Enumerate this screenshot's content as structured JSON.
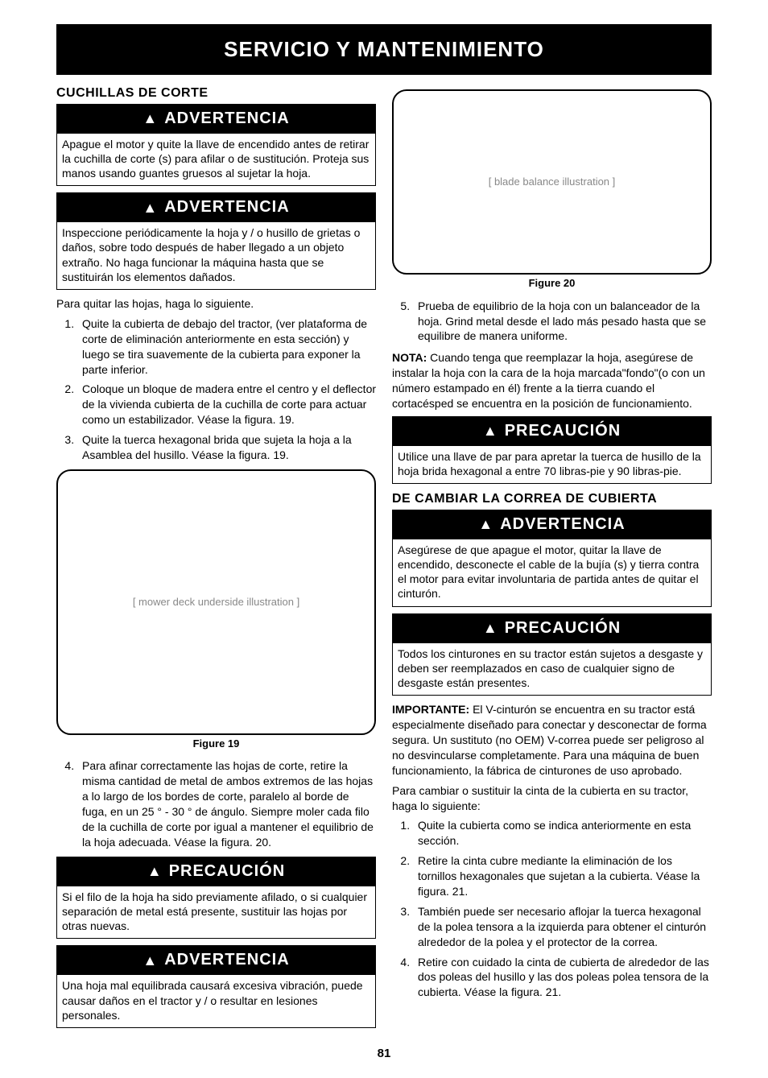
{
  "header": "SERVICIO Y MANTENIMIENTO",
  "left": {
    "section_title": "CUCHILLAS DE CORTE",
    "warn1": {
      "head": "ADVERTENCIA",
      "body": "Apague el motor y quite la llave de encendido antes de retirar la cuchilla de corte (s) para afilar o de sustitución. Proteja sus manos usando guantes gruesos al sujetar la hoja."
    },
    "warn2": {
      "head": "ADVERTENCIA",
      "body": "Inspeccione periódicamente la hoja y / o husillo de grietas o daños, sobre todo después de haber llegado a un objeto extraño. No haga funcionar la máquina hasta que se sustituirán los elementos dañados."
    },
    "intro": "Para quitar las hojas, haga lo siguiente.",
    "steps": [
      "Quite la cubierta de debajo del tractor, (ver plataforma de corte de eliminación anteriormente en esta sección) y luego se tira suavemente de la cubierta para exponer la parte inferior.",
      "Coloque un bloque de madera entre el centro y el deflector de la vivienda cubierta de la cuchilla de corte para actuar como un estabilizador. Véase la figura. 19.",
      "Quite la tuerca hexagonal brida que sujeta la hoja a la Asamblea del husillo. Véase la figura. 19."
    ],
    "fig19_caption": "Figure 19",
    "step4": "Para afinar correctamente las hojas de corte, retire la misma cantidad de metal de ambos extremos de las hojas a lo largo de los bordes de corte, paralelo al borde de fuga, en un 25 ° - 30 ° de ángulo. Siempre moler cada filo de la cuchilla de corte por igual a mantener el equilibrio de la hoja adecuada. Véase la figura. 20.",
    "warn3": {
      "head": "PRECAUCIÓN",
      "body": "Si el filo de la hoja ha sido previamente afilado, o si cualquier separación de metal está presente, sustituir las hojas por otras nuevas."
    },
    "warn4": {
      "head": "ADVERTENCIA",
      "body": "Una hoja mal equilibrada causará excesiva vibración, puede causar daños en el tractor y / o resultar en lesiones personales."
    }
  },
  "right": {
    "fig20_caption": "Figure 20",
    "step5": "Prueba de equilibrio de la hoja con un balanceador de la hoja. Grind metal desde el lado más pesado hasta que se equilibre de manera uniforme.",
    "nota_label": "NOTA:",
    "nota_body": " Cuando tenga que reemplazar la hoja, asegúrese de instalar la hoja con la cara de la hoja marcada\"fondo\"(o con un número estampado en él) frente a la tierra cuando el cortacésped se encuentra en la posición de funcionamiento.",
    "warn5": {
      "head": "PRECAUCIÓN",
      "body": "Utilice una llave de par para apretar la tuerca de husillo de la hoja brida hexagonal a entre 70 libras-pie y 90 libras-pie."
    },
    "section_title": "DE CAMBIAR LA CORREA DE CUBIERTA",
    "warn6": {
      "head": "ADVERTENCIA",
      "body": "Asegúrese de que apague el motor, quitar la llave de encendido, desconecte el cable de la bujía (s) y tierra contra el motor para evitar involuntaria de partida antes de quitar el cinturón."
    },
    "warn7": {
      "head": "PRECAUCIÓN",
      "body": "Todos los cinturones en su tractor están sujetos a desgaste y deben ser reemplazados en caso de cualquier signo de desgaste están presentes."
    },
    "imp_label": "IMPORTANTE:",
    "imp_body": " El V-cinturón se encuentra en su tractor está especialmente diseñado para conectar y desconectar de forma segura. Un sustituto (no OEM) V-correa puede ser peligroso al no desvincularse completamente. Para una máquina de buen funcionamiento, la fábrica de cinturones de uso aprobado.",
    "intro": "Para cambiar o sustituir la cinta de la cubierta en su tractor, haga lo siguiente:",
    "steps": [
      "Quite la cubierta como se indica anteriormente en esta sección.",
      "Retire la cinta cubre mediante la eliminación de los tornillos hexagonales que sujetan a la cubierta. Véase la figura. 21.",
      "También puede ser necesario aflojar la tuerca hexagonal de la polea tensora a la izquierda para obtener el cinturón alrededor de la polea y el protector de la correa.",
      "Retire con cuidado la cinta de cubierta de alrededor de las dos poleas del husillo y las dos poleas polea tensora de la cubierta. Véase la figura. 21."
    ]
  },
  "page_number": "81",
  "fig19_placeholder": "[ mower deck underside illustration ]",
  "fig20_placeholder": "[ blade balance illustration ]"
}
